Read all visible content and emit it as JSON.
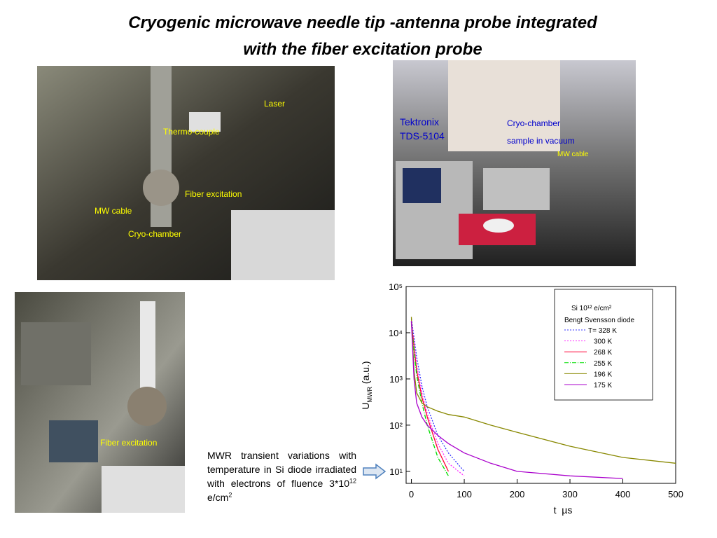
{
  "title": [
    "Cryogenic microwave needle tip -antenna probe integrated",
    "with the fiber excitation probe"
  ],
  "photos": [
    {
      "labels": [
        "Laser",
        "Thermo-couple",
        "Fiber excitation",
        "MW cable",
        "Cryo-chamber"
      ]
    },
    {
      "labels": [
        "Tektronix",
        "TDS-5104",
        "Cryo-chamber",
        "sample in vacuum",
        "MW cable"
      ]
    },
    {
      "labels": [
        "Fiber excitation"
      ]
    }
  ],
  "caption": {
    "text": "MWR transient variations with temperature in Si diode irradiated with electrons of fluence 3*10",
    "exp1": "12",
    "unit": " e/cm",
    "exp2": "2"
  },
  "chart_data": {
    "type": "line",
    "log_y": true,
    "ylabel": {
      "main": "U",
      "sub": "MWR",
      "rest": " (a.u.)"
    },
    "xlabel": "t  µs",
    "legend_title": [
      "Si 10¹² e/cm²",
      "Bengt Svensson diode"
    ],
    "legend_position": "upper right",
    "x": [
      0,
      5,
      10,
      20,
      30,
      50,
      70,
      100,
      150,
      200,
      300,
      400,
      500
    ],
    "series": [
      {
        "name": "T= 328 K",
        "color": "#3333ff",
        "dash": "dotted",
        "values": [
          20000,
          8000,
          3000,
          700,
          250,
          60,
          25,
          10,
          null,
          null,
          null,
          null,
          null
        ]
      },
      {
        "name": "300 K",
        "color": "#ff33ff",
        "dash": "dotted",
        "values": [
          18000,
          6000,
          2000,
          500,
          180,
          40,
          15,
          8,
          null,
          null,
          null,
          null,
          null
        ]
      },
      {
        "name": "268 K",
        "color": "#ff0033",
        "dash": "solid",
        "values": [
          17000,
          5000,
          1500,
          400,
          150,
          30,
          10,
          null,
          null,
          null,
          null,
          null,
          null
        ]
      },
      {
        "name": "255 K",
        "color": "#00dd00",
        "dash": "dashdot",
        "values": [
          16000,
          4000,
          1200,
          300,
          100,
          20,
          8,
          null,
          null,
          null,
          null,
          null,
          null
        ]
      },
      {
        "name": "196 K",
        "color": "#888800",
        "dash": "solid",
        "values": [
          22000,
          1500,
          500,
          300,
          250,
          200,
          170,
          150,
          100,
          70,
          35,
          20,
          15
        ]
      },
      {
        "name": "175 K",
        "color": "#aa00cc",
        "dash": "solid",
        "values": [
          18000,
          1000,
          300,
          150,
          100,
          60,
          40,
          25,
          15,
          10,
          8,
          7,
          null
        ]
      }
    ],
    "xlim": [
      -10,
      500
    ],
    "xticks": [
      0,
      100,
      200,
      300,
      400,
      500
    ],
    "ylim": [
      5.5,
      100000
    ],
    "yticks": [
      {
        "value": 10,
        "label": "10¹"
      },
      {
        "value": 100,
        "label": "10²"
      },
      {
        "value": 1000,
        "label": "10³"
      },
      {
        "value": 10000,
        "label": "10⁴"
      },
      {
        "value": 100000,
        "label": "10⁵"
      }
    ]
  }
}
